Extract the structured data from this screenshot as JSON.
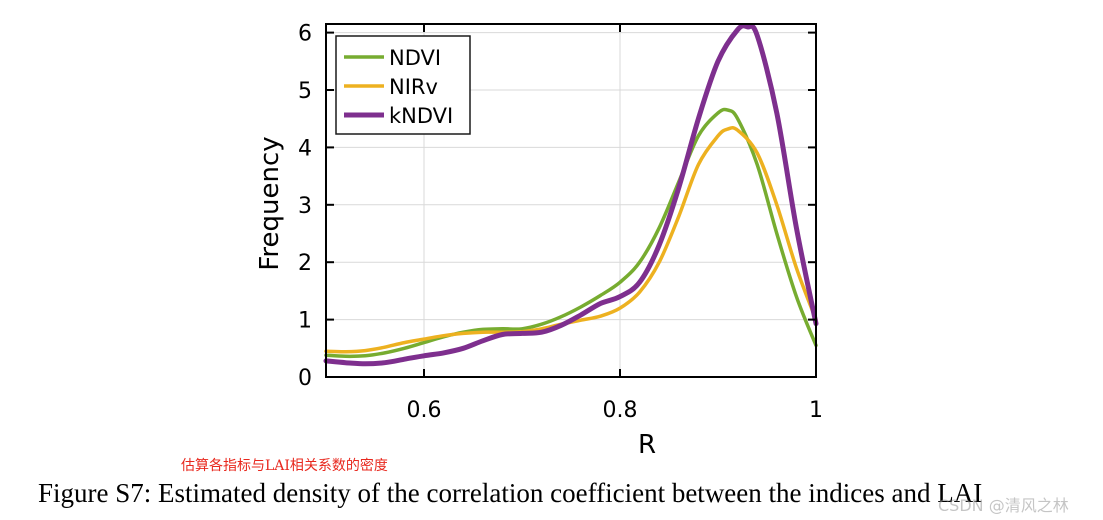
{
  "chart_data": {
    "type": "line",
    "title": "",
    "xlabel": "R",
    "ylabel": "Frequency",
    "xlim": [
      0.5,
      1.0
    ],
    "ylim": [
      0,
      6.15
    ],
    "xticks": [
      0.6,
      0.8,
      1.0
    ],
    "xtick_labels": [
      "0.6",
      "0.8",
      "1"
    ],
    "yticks": [
      0,
      1,
      2,
      3,
      4,
      5,
      6
    ],
    "ytick_labels": [
      "0",
      "1",
      "2",
      "3",
      "4",
      "5",
      "6"
    ],
    "grid": true,
    "legend_position": "top-left",
    "series": [
      {
        "name": "NDVI",
        "color": "#77ac30",
        "x": [
          0.5,
          0.52,
          0.54,
          0.56,
          0.58,
          0.6,
          0.62,
          0.64,
          0.66,
          0.68,
          0.7,
          0.72,
          0.74,
          0.76,
          0.78,
          0.8,
          0.82,
          0.84,
          0.86,
          0.88,
          0.9,
          0.91,
          0.92,
          0.94,
          0.96,
          0.98,
          1.0
        ],
        "values": [
          0.38,
          0.36,
          0.37,
          0.42,
          0.5,
          0.6,
          0.7,
          0.78,
          0.83,
          0.84,
          0.84,
          0.92,
          1.05,
          1.22,
          1.42,
          1.65,
          2.0,
          2.6,
          3.4,
          4.2,
          4.6,
          4.65,
          4.5,
          3.7,
          2.5,
          1.4,
          0.55
        ]
      },
      {
        "name": "NIRv",
        "color": "#edb120",
        "x": [
          0.5,
          0.52,
          0.54,
          0.56,
          0.58,
          0.6,
          0.62,
          0.64,
          0.66,
          0.68,
          0.7,
          0.72,
          0.74,
          0.76,
          0.78,
          0.8,
          0.82,
          0.84,
          0.86,
          0.88,
          0.9,
          0.91,
          0.92,
          0.94,
          0.96,
          0.98,
          1.0
        ],
        "values": [
          0.45,
          0.44,
          0.46,
          0.52,
          0.6,
          0.66,
          0.72,
          0.76,
          0.78,
          0.78,
          0.79,
          0.84,
          0.92,
          0.99,
          1.06,
          1.2,
          1.48,
          2.0,
          2.8,
          3.7,
          4.2,
          4.32,
          4.3,
          3.9,
          3.0,
          1.9,
          1.0
        ]
      },
      {
        "name": "kNDVI",
        "color": "#7e2f8e",
        "x": [
          0.5,
          0.52,
          0.54,
          0.56,
          0.58,
          0.6,
          0.62,
          0.64,
          0.66,
          0.68,
          0.7,
          0.72,
          0.74,
          0.76,
          0.78,
          0.8,
          0.82,
          0.84,
          0.86,
          0.88,
          0.9,
          0.92,
          0.93,
          0.94,
          0.96,
          0.98,
          1.0
        ],
        "values": [
          0.28,
          0.25,
          0.23,
          0.25,
          0.31,
          0.37,
          0.42,
          0.5,
          0.63,
          0.74,
          0.76,
          0.78,
          0.9,
          1.08,
          1.28,
          1.4,
          1.65,
          2.3,
          3.3,
          4.5,
          5.5,
          6.05,
          6.1,
          5.95,
          4.6,
          2.6,
          0.93
        ]
      }
    ]
  },
  "annotation": "估算各指标与LAI相关系数的密度",
  "caption": "Figure S7: Estimated density of the correlation coefficient between the indices and LAI",
  "watermark": "CSDN @清风之林"
}
